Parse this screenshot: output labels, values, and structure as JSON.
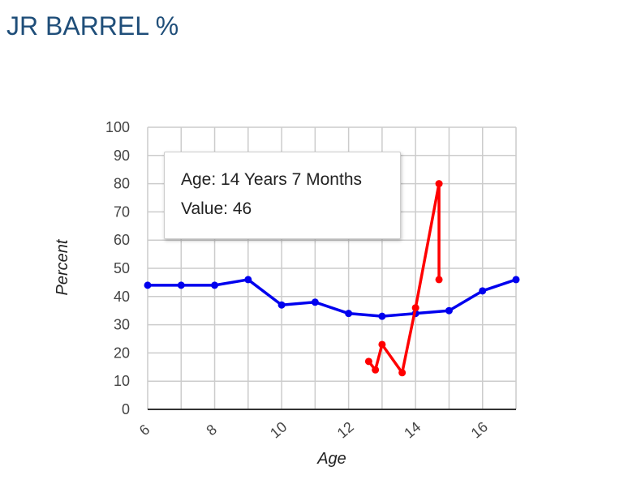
{
  "title": "JR BARREL %",
  "tooltip": {
    "age_line": "Age: 14 Years 7 Months",
    "value_line": "Value: 46"
  },
  "chart_data": {
    "type": "line",
    "xlabel": "Age",
    "ylabel": "Percent",
    "xlim": [
      6,
      17
    ],
    "ylim": [
      0,
      100
    ],
    "x_ticks": [
      6,
      8,
      10,
      12,
      14,
      16
    ],
    "y_ticks": [
      0,
      10,
      20,
      30,
      40,
      50,
      60,
      70,
      80,
      90,
      100
    ],
    "grid": true,
    "series": [
      {
        "color": "#0000ee",
        "points": [
          [
            6,
            44
          ],
          [
            7,
            44
          ],
          [
            8,
            44
          ],
          [
            9,
            46
          ],
          [
            10,
            37
          ],
          [
            11,
            38
          ],
          [
            12,
            34
          ],
          [
            13,
            33
          ],
          [
            14,
            34
          ],
          [
            15,
            35
          ],
          [
            16,
            42
          ],
          [
            17,
            46
          ]
        ]
      },
      {
        "color": "#ff0000",
        "points": [
          [
            12.6,
            17
          ],
          [
            12.8,
            14
          ],
          [
            13.0,
            23
          ],
          [
            13.6,
            13
          ],
          [
            14.0,
            36
          ],
          [
            14.7,
            80
          ],
          [
            14.7,
            46
          ]
        ]
      }
    ]
  }
}
